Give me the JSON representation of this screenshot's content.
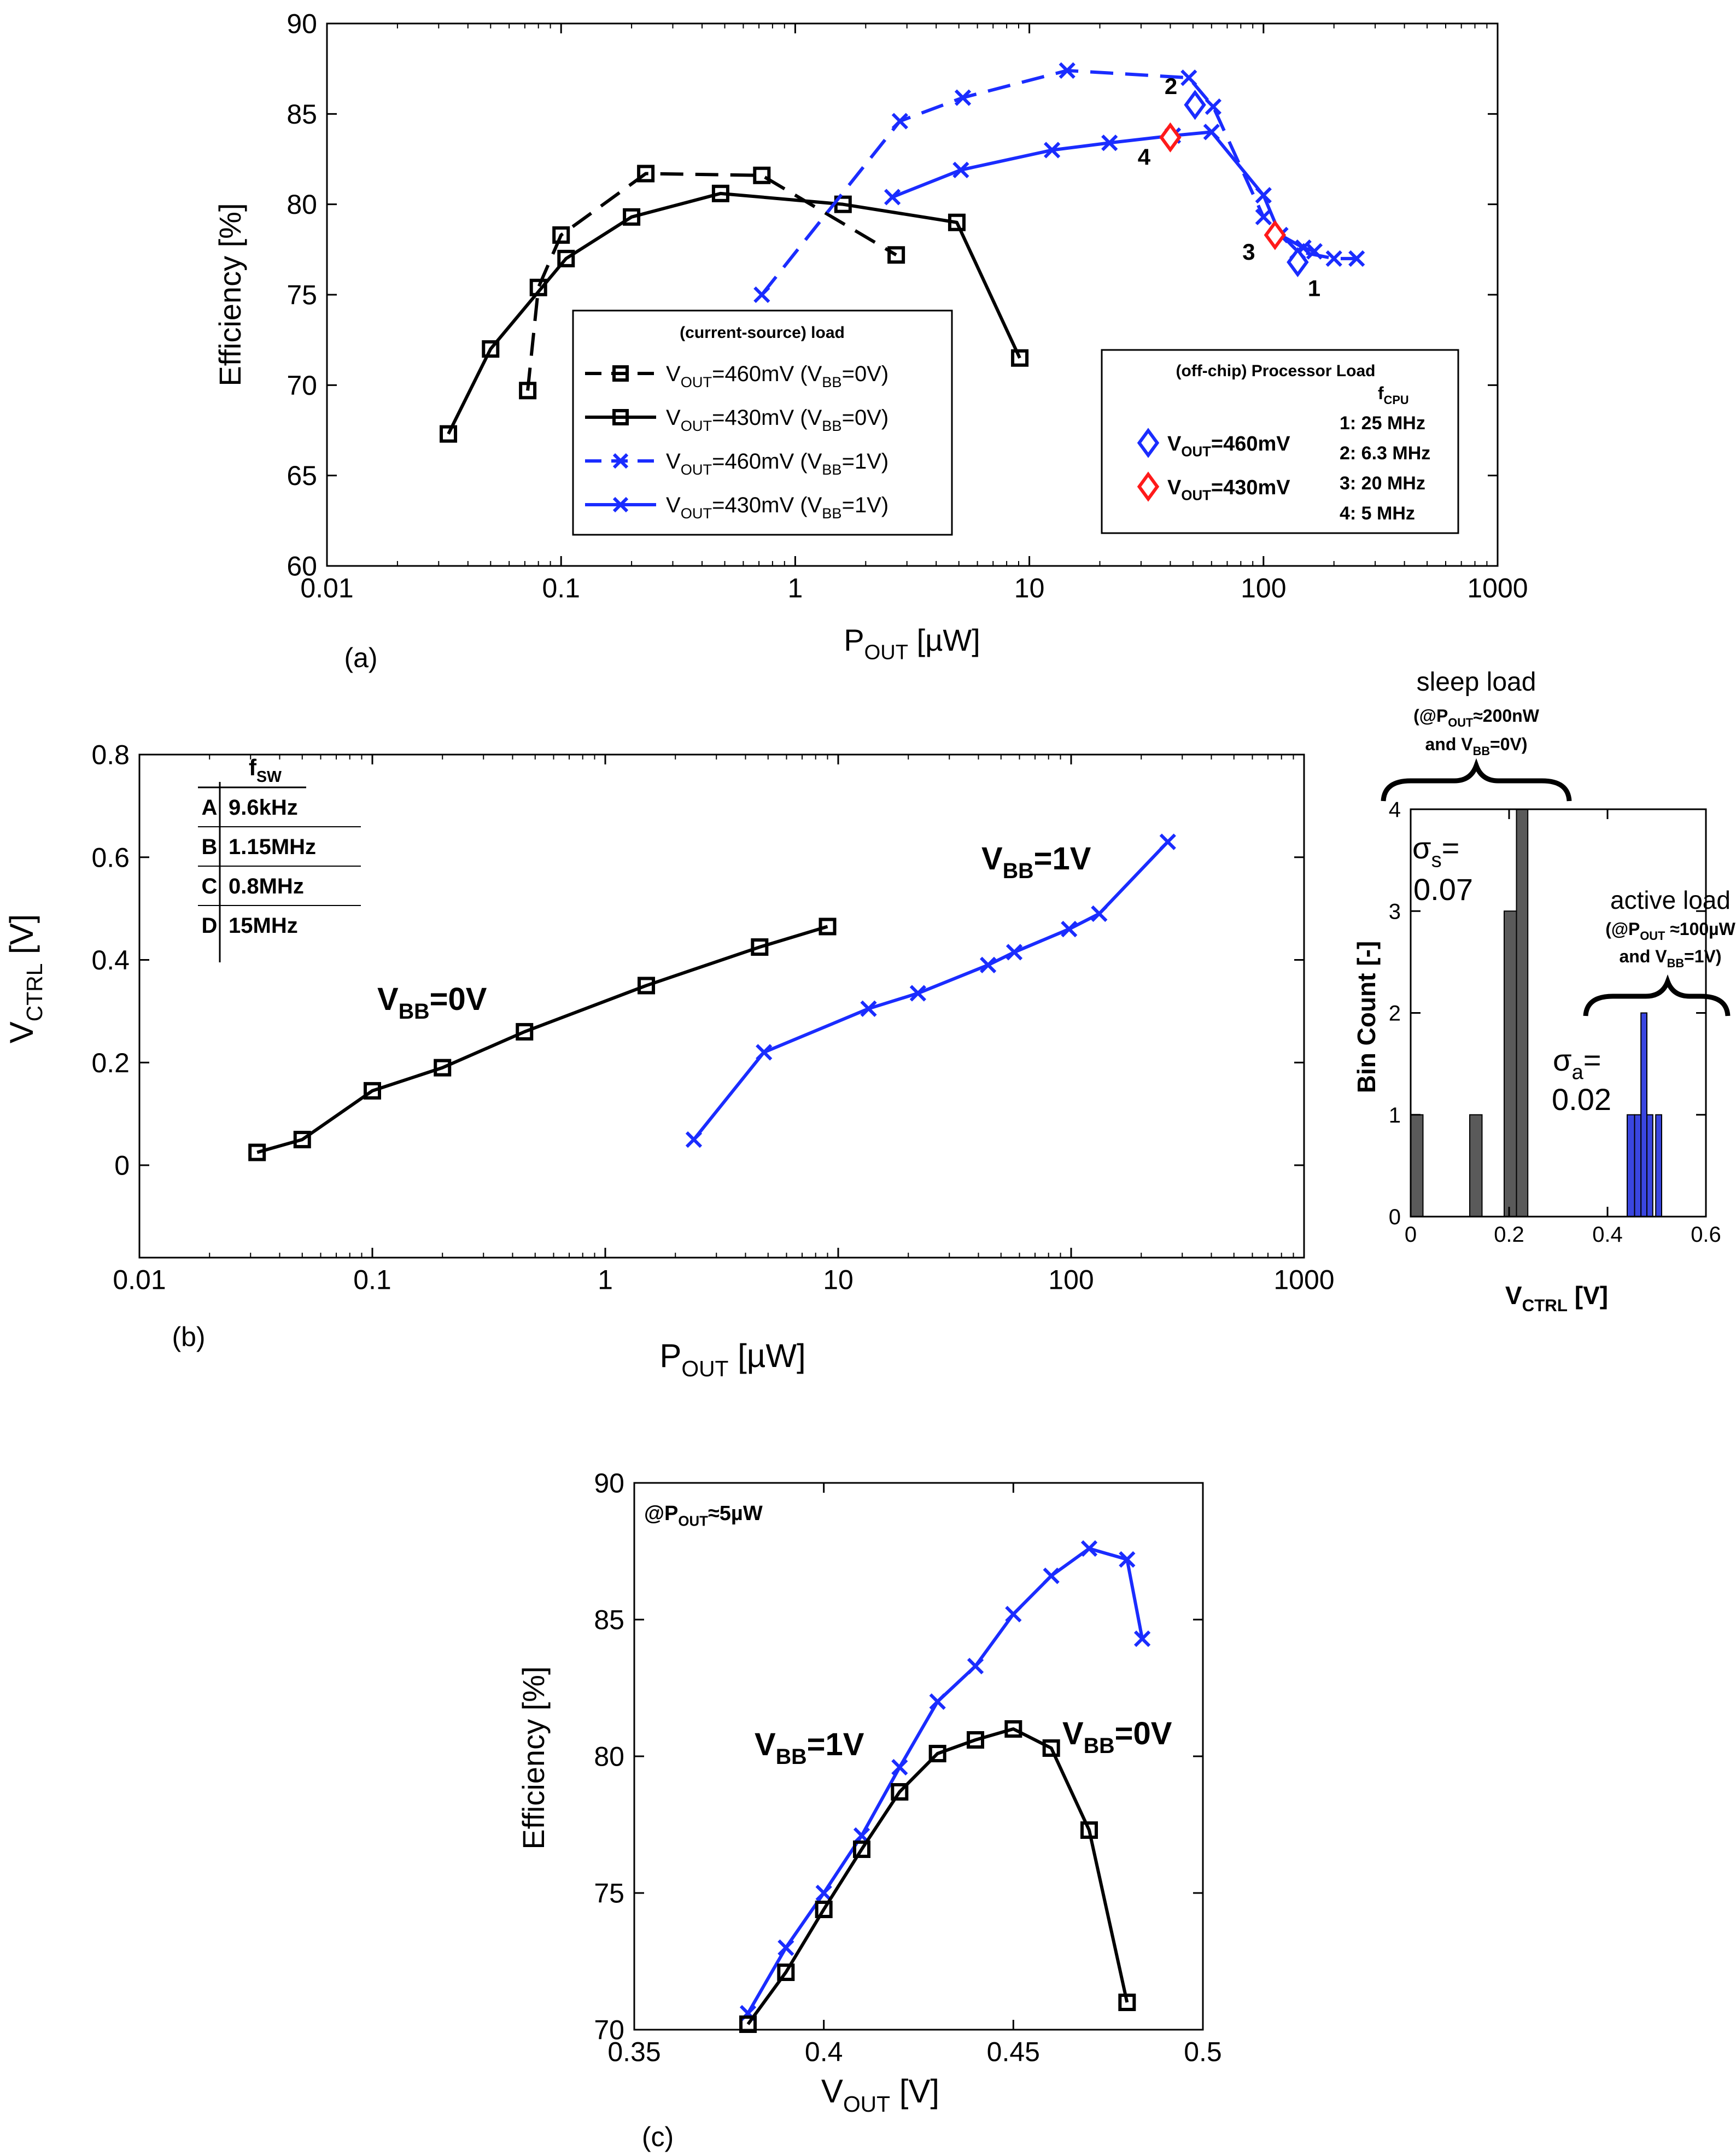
{
  "colors": {
    "black": "#000000",
    "blue": "#1a2cff",
    "red": "#ff1a1a",
    "gray_bar": "#5a5a5a",
    "blue_bar": "#3a46e0"
  },
  "chart_data": [
    {
      "id": "a",
      "type": "line",
      "panel_label": "(a)",
      "xlabel": "P",
      "xlabel_sub": "OUT",
      "xlabel_unit": " [µW]",
      "ylabel": "Efficiency  [%]",
      "xscale": "log",
      "xlim": [
        0.01,
        1000
      ],
      "ylim": [
        60,
        90
      ],
      "x_ticks": [
        0.01,
        0.1,
        1,
        10,
        100,
        1000
      ],
      "x_tick_labels": [
        "0.01",
        "0.1",
        "1",
        "10",
        "100",
        "1000"
      ],
      "y_ticks": [
        60,
        65,
        70,
        75,
        80,
        85,
        90
      ],
      "y_tick_labels": [
        "60",
        "65",
        "70",
        "75",
        "80",
        "85",
        "90"
      ],
      "grid": false,
      "series": [
        {
          "line": "dashed",
          "color": "black",
          "marker": "square",
          "x": [
            0.072,
            0.08,
            0.1,
            0.23,
            0.72,
            2.7
          ],
          "y": [
            69.7,
            75.4,
            78.3,
            81.7,
            81.6,
            77.2
          ]
        },
        {
          "line": "solid",
          "color": "black",
          "marker": "square",
          "x": [
            0.033,
            0.05,
            0.105,
            0.2,
            0.48,
            1.6,
            4.9,
            9.1
          ],
          "y": [
            67.3,
            72.0,
            77.0,
            79.3,
            80.6,
            80.0,
            79.0,
            71.5
          ]
        },
        {
          "line": "dashed",
          "color": "blue",
          "marker": "x",
          "x": [
            0.72,
            2.8,
            5.2,
            14.5,
            48,
            61,
            100,
            140,
            200,
            250
          ],
          "y": [
            75.0,
            84.6,
            85.9,
            87.4,
            87.0,
            85.4,
            79.3,
            77.4,
            77.0,
            77.0
          ]
        },
        {
          "line": "solid",
          "color": "blue",
          "marker": "x",
          "x": [
            2.6,
            5.1,
            12.5,
            22,
            41,
            60,
            100,
            118,
            148,
            165
          ],
          "y": [
            80.4,
            81.9,
            83.0,
            83.4,
            83.8,
            84.0,
            80.5,
            78.3,
            77.6,
            77.4
          ]
        }
      ],
      "processor_points": [
        {
          "x": 140,
          "y": 76.8,
          "color": "blue",
          "label": "1"
        },
        {
          "x": 51,
          "y": 85.5,
          "color": "blue",
          "label": "2"
        },
        {
          "x": 112,
          "y": 78.3,
          "color": "red",
          "label": "3"
        },
        {
          "x": 40,
          "y": 83.7,
          "color": "red",
          "label": "4"
        }
      ],
      "legend1": {
        "title": "(current-source) load",
        "entries": [
          {
            "p1": "V",
            "s1": "OUT",
            "p2": "=460mV (V",
            "s2": "BB",
            "p3": "=0V)"
          },
          {
            "p1": "V",
            "s1": "OUT",
            "p2": "=430mV (V",
            "s2": "BB",
            "p3": "=0V)"
          },
          {
            "p1": "V",
            "s1": "OUT",
            "p2": "=460mV (V",
            "s2": "BB",
            "p3": "=1V)"
          },
          {
            "p1": "V",
            "s1": "OUT",
            "p2": "=430mV (V",
            "s2": "BB",
            "p3": "=1V)"
          }
        ]
      },
      "legend2": {
        "title": "(off-chip) Processor Load",
        "fcpu_label": "f",
        "fcpu_sub": "CPU",
        "entries": [
          {
            "p1": "V",
            "s1": "OUT",
            "p2": "=460mV"
          },
          {
            "p1": "V",
            "s1": "OUT",
            "p2": "=430mV"
          }
        ],
        "freqs": [
          "1: 25 MHz",
          "2: 6.3 MHz",
          "3: 20 MHz",
          "4: 5 MHz"
        ]
      }
    },
    {
      "id": "b",
      "type": "line",
      "panel_label": "(b)",
      "xlabel": "P",
      "xlabel_sub": "OUT",
      "xlabel_unit": " [µW]",
      "ylabel": "V",
      "ylabel_sub": "CTRL",
      "ylabel_unit": " [V]",
      "xscale": "log",
      "xlim": [
        0.01,
        1000
      ],
      "ylim": [
        -0.18,
        0.8
      ],
      "x_ticks": [
        0.01,
        0.1,
        1,
        10,
        100,
        1000
      ],
      "x_tick_labels": [
        "0.01",
        "0.1",
        "1",
        "10",
        "100",
        "1000"
      ],
      "y_ticks": [
        0,
        0.2,
        0.4,
        0.6,
        0.8
      ],
      "y_tick_labels": [
        "0",
        "0.2",
        "0.4",
        "0.6",
        "0.8"
      ],
      "grid": false,
      "series": [
        {
          "name": "V_BB=0V",
          "label_p1": "V",
          "label_s1": "BB",
          "label_p2": "=0V",
          "color": "black",
          "marker": "square",
          "x": [
            0.032,
            0.05,
            0.1,
            0.2,
            0.45,
            1.5,
            4.6,
            9.0
          ],
          "y": [
            0.025,
            0.05,
            0.145,
            0.19,
            0.26,
            0.35,
            0.425,
            0.465
          ]
        },
        {
          "name": "V_BB=1V",
          "label_p1": "V",
          "label_s1": "BB",
          "label_p2": "=1V",
          "color": "blue",
          "marker": "x",
          "x": [
            2.4,
            4.8,
            13.5,
            22,
            44,
            57,
            98,
            132,
            260
          ],
          "y": [
            0.05,
            0.22,
            0.305,
            0.335,
            0.39,
            0.415,
            0.46,
            0.49,
            0.63
          ]
        }
      ],
      "fsw_table": {
        "header_p1": "f",
        "header_s1": "SW",
        "rows": [
          [
            "A",
            "9.6kHz"
          ],
          [
            "B",
            "1.15MHz"
          ],
          [
            "C",
            "0.8MHz"
          ],
          [
            "D",
            "15MHz"
          ]
        ]
      }
    },
    {
      "id": "b-hist",
      "type": "bar",
      "xlabel": "V",
      "xlabel_sub": "CTRL",
      "xlabel_unit": " [V]",
      "ylabel": "Bin Count [-]",
      "xlim": [
        0,
        0.6
      ],
      "ylim": [
        0,
        4
      ],
      "x_ticks": [
        0,
        0.2,
        0.4,
        0.6
      ],
      "x_tick_labels": [
        "0",
        "0.2",
        "0.4",
        "0.6"
      ],
      "y_ticks": [
        0,
        1,
        2,
        3,
        4
      ],
      "y_tick_labels": [
        "0",
        "1",
        "2",
        "3",
        "4"
      ],
      "series": [
        {
          "name": "sleep",
          "color": "gray_bar",
          "bins": [
            {
              "x0": 0.0,
              "x1": 0.025,
              "count": 1
            },
            {
              "x0": 0.12,
              "x1": 0.145,
              "count": 1
            },
            {
              "x0": 0.19,
              "x1": 0.215,
              "count": 3
            },
            {
              "x0": 0.215,
              "x1": 0.238,
              "count": 4
            }
          ]
        },
        {
          "name": "active",
          "color": "blue_bar",
          "bins": [
            {
              "x0": 0.44,
              "x1": 0.455,
              "count": 1
            },
            {
              "x0": 0.455,
              "x1": 0.468,
              "count": 1
            },
            {
              "x0": 0.468,
              "x1": 0.48,
              "count": 2
            },
            {
              "x0": 0.48,
              "x1": 0.492,
              "count": 1
            },
            {
              "x0": 0.498,
              "x1": 0.51,
              "count": 1
            }
          ]
        }
      ],
      "annotations": {
        "sleep_title": "sleep load",
        "sleep_cond1_p1": "(@P",
        "sleep_cond1_s1": "OUT",
        "sleep_cond1_p2": "≈200nW",
        "sleep_cond2_p1": "and V",
        "sleep_cond2_s1": "BB",
        "sleep_cond2_p2": "=0V)",
        "sigma_s_p1": "σ",
        "sigma_s_s1": "s",
        "sigma_s_p2": "=",
        "sigma_s_val": "0.07",
        "active_title": "active load",
        "active_cond1_p1": "(@P",
        "active_cond1_s1": "OUT",
        "active_cond1_p2": " ≈100µW",
        "active_cond2_p1": "and V",
        "active_cond2_s1": "BB",
        "active_cond2_p2": "=1V)",
        "sigma_a_p1": "σ",
        "sigma_a_s1": "a",
        "sigma_a_p2": "=",
        "sigma_a_val": "0.02"
      }
    },
    {
      "id": "c",
      "type": "line",
      "panel_label": "(c)",
      "xlabel": "V",
      "xlabel_sub": "OUT",
      "xlabel_unit": " [V]",
      "ylabel": "Efficiency [%]",
      "xlim": [
        0.35,
        0.5
      ],
      "ylim": [
        70,
        90
      ],
      "x_ticks": [
        0.35,
        0.4,
        0.45,
        0.5
      ],
      "x_tick_labels": [
        "0.35",
        "0.4",
        "0.45",
        "0.5"
      ],
      "y_ticks": [
        70,
        75,
        80,
        85,
        90
      ],
      "y_tick_labels": [
        "70",
        "75",
        "80",
        "85",
        "90"
      ],
      "grid": false,
      "condition": {
        "p1": "@P",
        "s1": "OUT",
        "p2": "≈5µW"
      },
      "series": [
        {
          "name": "V_BB=1V",
          "label_p1": "V",
          "label_s1": "BB",
          "label_p2": "=1V",
          "color": "blue",
          "marker": "x",
          "x": [
            0.38,
            0.39,
            0.4,
            0.41,
            0.42,
            0.43,
            0.44,
            0.45,
            0.46,
            0.47,
            0.48,
            0.484
          ],
          "y": [
            70.6,
            73.0,
            75.0,
            77.1,
            79.6,
            82.0,
            83.3,
            85.2,
            86.6,
            87.6,
            87.2,
            84.3
          ]
        },
        {
          "name": "V_BB=0V",
          "label_p1": "V",
          "label_s1": "BB",
          "label_p2": "=0V",
          "color": "black",
          "marker": "square",
          "x": [
            0.38,
            0.39,
            0.4,
            0.41,
            0.42,
            0.43,
            0.44,
            0.45,
            0.46,
            0.47,
            0.48
          ],
          "y": [
            70.2,
            72.1,
            74.4,
            76.6,
            78.7,
            80.1,
            80.6,
            81.0,
            80.3,
            77.3,
            71.0
          ]
        }
      ]
    }
  ]
}
